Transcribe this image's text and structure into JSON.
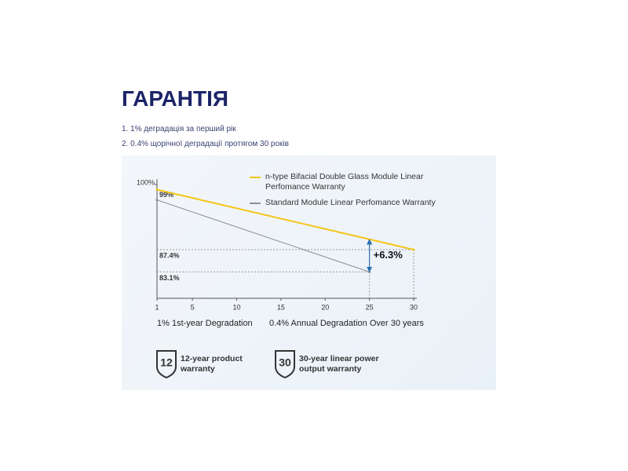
{
  "header": {
    "title": "ГАРАНТІЯ",
    "items": [
      "1. 1% деградація за перший рік",
      "2. 0.4% щорічної деградації протягом 30 років"
    ]
  },
  "chart_data": {
    "type": "line",
    "series": [
      {
        "name": "n-type Bifacial Double Glass Module Linear Perfomance Warranty",
        "color": "#f5c518",
        "x": [
          1,
          30
        ],
        "values": [
          99,
          87.4
        ]
      },
      {
        "name": "Standard Module Linear Perfomance Warranty",
        "color": "#8a8f99",
        "x": [
          1,
          25
        ],
        "values": [
          97,
          83.1
        ]
      }
    ],
    "xlim": [
      1,
      30
    ],
    "xticks": [
      1,
      5,
      10,
      15,
      20,
      25,
      30
    ],
    "ylim": [
      78,
      100
    ],
    "yticks": [
      {
        "value": 100,
        "label": "100%"
      }
    ],
    "reference_lines": [
      {
        "label": "99%",
        "value": 99
      },
      {
        "label": "87.4%",
        "value": 87.4,
        "x": 30
      },
      {
        "label": "83.1%",
        "value": 83.1,
        "x": 25
      }
    ],
    "gap_arrow": {
      "label": "+6.3%",
      "x": 25,
      "from": 83.1,
      "to": 89.4
    }
  },
  "captions": [
    "1% 1st-year Degradation",
    "0.4% Annual Degradation Over 30 years"
  ],
  "badges": [
    {
      "icon": "12",
      "text": "12-year product warranty"
    },
    {
      "icon": "30",
      "text": "30-year linear power output warranty"
    }
  ]
}
